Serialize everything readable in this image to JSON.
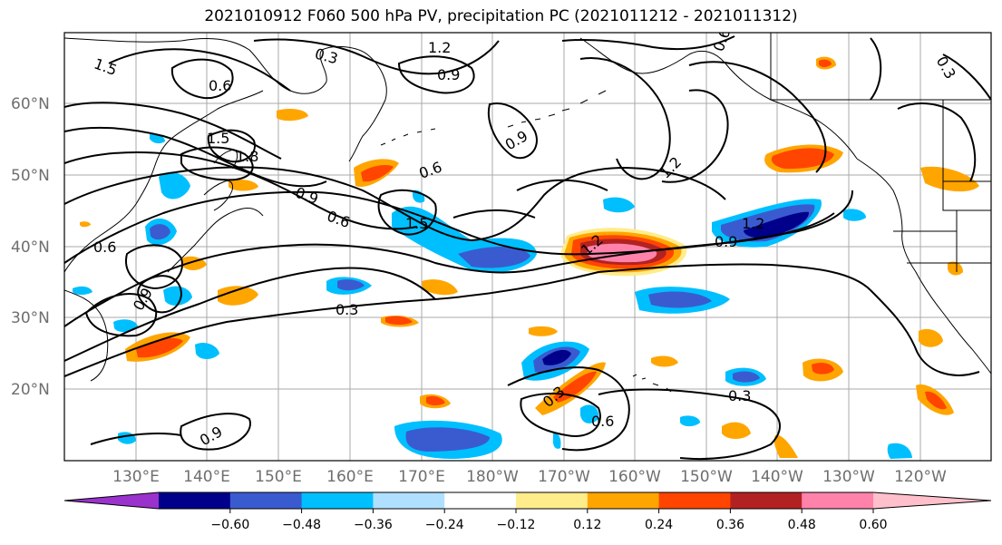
{
  "title": "2021010912 F060 500 hPa PV, precipitation PC (2021011212 - 2021011312)",
  "lat_labels": [
    "60°N",
    "50°N",
    "40°N",
    "30°N",
    "20°N"
  ],
  "lon_labels": [
    "130°E",
    "140°E",
    "150°E",
    "160°E",
    "170°E",
    "180°W",
    "170°W",
    "160°W",
    "150°W",
    "140°W",
    "130°W",
    "120°W"
  ],
  "colorbar": {
    "colors": [
      "#9a32cd",
      "#00008b",
      "#3a5bd0",
      "#00bfff",
      "#b0e0ff",
      "#ffffff",
      "#ffec8b",
      "#ffa500",
      "#ff4500",
      "#b22222",
      "#ff82ab",
      "#ffc0cb"
    ],
    "ticks": [
      "−0.60",
      "−0.48",
      "−0.36",
      "−0.24",
      "−0.12",
      "0.12",
      "0.24",
      "0.36",
      "0.48",
      "0.60"
    ]
  },
  "contour_labels": [
    "1.5",
    "0.3",
    "1.2",
    "0.9",
    "0.6",
    "0.6",
    "0.9",
    "1.5",
    "1.8",
    "0.9",
    "0.6",
    "1.2",
    "0.6",
    "1.5",
    "1.2",
    "0.9",
    "1.2",
    "0.3",
    "0.6",
    "0.3",
    "0.3",
    "0.6",
    "0.3",
    "0.9",
    "0.9"
  ]
}
